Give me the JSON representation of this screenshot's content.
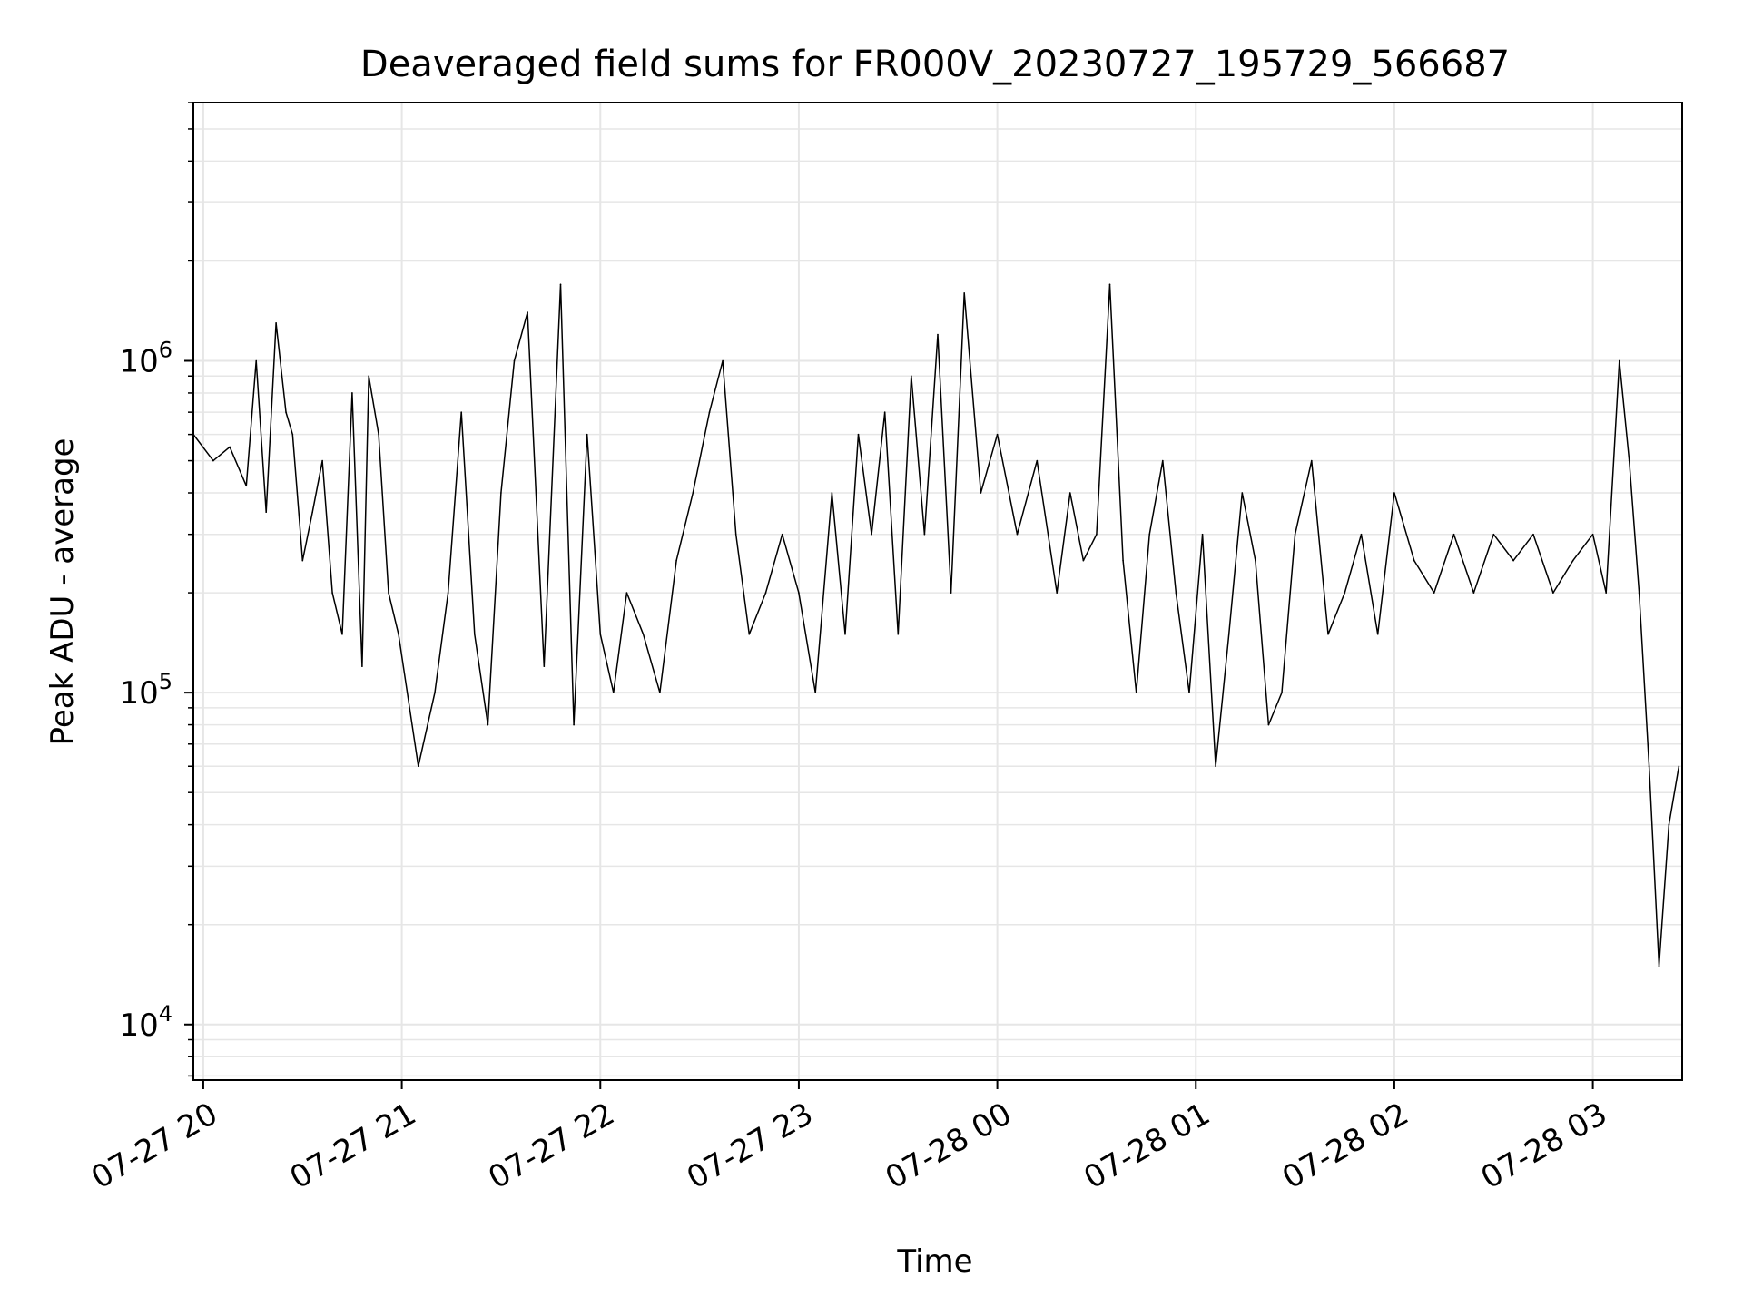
{
  "chart_data": {
    "type": "line",
    "title": "Deaveraged field sums for FR000V_20230727_195729_566687",
    "xlabel": "Time",
    "ylabel": "Peak ADU - average",
    "xlim": [
      "2023-07-27 19:57",
      "2023-07-28 03:27"
    ],
    "ylim": [
      6800,
      6000000
    ],
    "yscale": "log",
    "grid": true,
    "legend": "none",
    "colors": {
      "line": "#000000",
      "grid": "#e6e6e6"
    },
    "xticks": [
      {
        "value": "2023-07-27 20:00",
        "label": "07-27 20"
      },
      {
        "value": "2023-07-27 21:00",
        "label": "07-27 21"
      },
      {
        "value": "2023-07-27 22:00",
        "label": "07-27 22"
      },
      {
        "value": "2023-07-27 23:00",
        "label": "07-27 23"
      },
      {
        "value": "2023-07-28 00:00",
        "label": "07-28 00"
      },
      {
        "value": "2023-07-28 01:00",
        "label": "07-28 01"
      },
      {
        "value": "2023-07-28 02:00",
        "label": "07-28 02"
      },
      {
        "value": "2023-07-28 03:00",
        "label": "07-28 03"
      }
    ],
    "yticks": [
      {
        "value": 10000,
        "base": "10",
        "exp": "4"
      },
      {
        "value": 100000,
        "base": "10",
        "exp": "5"
      },
      {
        "value": 1000000,
        "base": "10",
        "exp": "6"
      }
    ],
    "series": [
      {
        "x": [
          "2023-07-27 19:57",
          "2023-07-27 20:03",
          "2023-07-27 20:08",
          "2023-07-27 20:13",
          "2023-07-27 20:16",
          "2023-07-27 20:19",
          "2023-07-27 20:22",
          "2023-07-27 20:25",
          "2023-07-27 20:27",
          "2023-07-27 20:30",
          "2023-07-27 20:33",
          "2023-07-27 20:36",
          "2023-07-27 20:39",
          "2023-07-27 20:42",
          "2023-07-27 20:45",
          "2023-07-27 20:48",
          "2023-07-27 20:50",
          "2023-07-27 20:53",
          "2023-07-27 20:56",
          "2023-07-27 20:59",
          "2023-07-27 21:05",
          "2023-07-27 21:10",
          "2023-07-27 21:14",
          "2023-07-27 21:18",
          "2023-07-27 21:22",
          "2023-07-27 21:26",
          "2023-07-27 21:30",
          "2023-07-27 21:34",
          "2023-07-27 21:38",
          "2023-07-27 21:43",
          "2023-07-27 21:48",
          "2023-07-27 21:52",
          "2023-07-27 21:56",
          "2023-07-27 22:00",
          "2023-07-27 22:04",
          "2023-07-27 22:08",
          "2023-07-27 22:13",
          "2023-07-27 22:18",
          "2023-07-27 22:23",
          "2023-07-27 22:28",
          "2023-07-27 22:33",
          "2023-07-27 22:37",
          "2023-07-27 22:41",
          "2023-07-27 22:45",
          "2023-07-27 22:50",
          "2023-07-27 22:55",
          "2023-07-27 23:00",
          "2023-07-27 23:05",
          "2023-07-27 23:10",
          "2023-07-27 23:14",
          "2023-07-27 23:18",
          "2023-07-27 23:22",
          "2023-07-27 23:26",
          "2023-07-27 23:30",
          "2023-07-27 23:34",
          "2023-07-27 23:38",
          "2023-07-27 23:42",
          "2023-07-27 23:46",
          "2023-07-27 23:50",
          "2023-07-27 23:55",
          "2023-07-28 00:00",
          "2023-07-28 00:06",
          "2023-07-28 00:12",
          "2023-07-28 00:18",
          "2023-07-28 00:22",
          "2023-07-28 00:26",
          "2023-07-28 00:30",
          "2023-07-28 00:34",
          "2023-07-28 00:38",
          "2023-07-28 00:42",
          "2023-07-28 00:46",
          "2023-07-28 00:50",
          "2023-07-28 00:54",
          "2023-07-28 00:58",
          "2023-07-28 01:02",
          "2023-07-28 01:06",
          "2023-07-28 01:10",
          "2023-07-28 01:14",
          "2023-07-28 01:18",
          "2023-07-28 01:22",
          "2023-07-28 01:26",
          "2023-07-28 01:30",
          "2023-07-28 01:35",
          "2023-07-28 01:40",
          "2023-07-28 01:45",
          "2023-07-28 01:50",
          "2023-07-28 01:55",
          "2023-07-28 02:00",
          "2023-07-28 02:06",
          "2023-07-28 02:12",
          "2023-07-28 02:18",
          "2023-07-28 02:24",
          "2023-07-28 02:30",
          "2023-07-28 02:36",
          "2023-07-28 02:42",
          "2023-07-28 02:48",
          "2023-07-28 02:54",
          "2023-07-28 03:00",
          "2023-07-28 03:04",
          "2023-07-28 03:08",
          "2023-07-28 03:11",
          "2023-07-28 03:14",
          "2023-07-28 03:17",
          "2023-07-28 03:20",
          "2023-07-28 03:23",
          "2023-07-28 03:26"
        ],
        "values": [
          600000,
          500000,
          550000,
          420000,
          1000000,
          350000,
          1300000,
          700000,
          600000,
          250000,
          350000,
          500000,
          200000,
          150000,
          800000,
          120000,
          900000,
          600000,
          200000,
          150000,
          60000,
          100000,
          200000,
          700000,
          150000,
          80000,
          400000,
          1000000,
          1400000,
          120000,
          1700000,
          80000,
          600000,
          150000,
          100000,
          200000,
          150000,
          100000,
          250000,
          400000,
          700000,
          1000000,
          300000,
          150000,
          200000,
          300000,
          200000,
          100000,
          400000,
          150000,
          600000,
          300000,
          700000,
          150000,
          900000,
          300000,
          1200000,
          200000,
          1600000,
          400000,
          600000,
          300000,
          500000,
          200000,
          400000,
          250000,
          300000,
          1700000,
          250000,
          100000,
          300000,
          500000,
          200000,
          100000,
          300000,
          60000,
          150000,
          400000,
          250000,
          80000,
          100000,
          300000,
          500000,
          150000,
          200000,
          300000,
          150000,
          400000,
          250000,
          200000,
          300000,
          200000,
          300000,
          250000,
          300000,
          200000,
          250000,
          300000,
          200000,
          1000000,
          500000,
          200000,
          60000,
          15000,
          40000,
          60000
        ]
      }
    ],
    "annotations": []
  }
}
